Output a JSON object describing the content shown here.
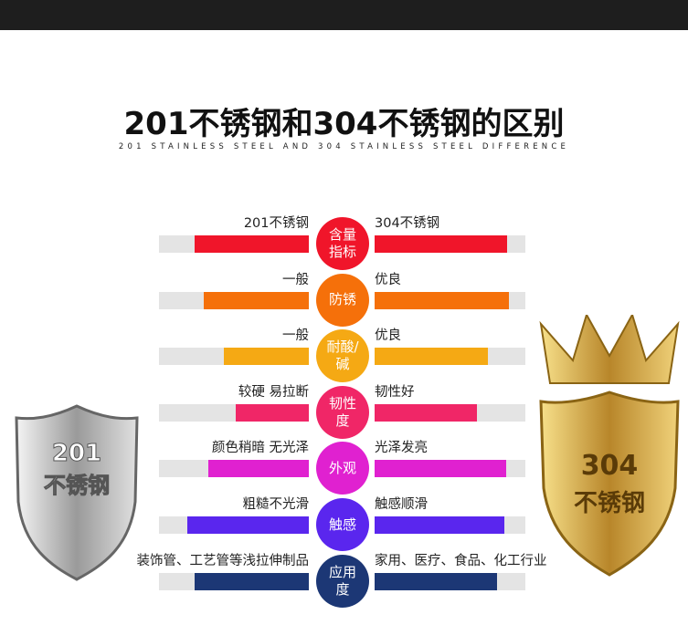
{
  "chart_data": {
    "type": "butterfly",
    "title": "201不锈钢和304不锈钢的区别",
    "subtitle": "201 STAINLESS STEEL AND 304 STAINLESS STEEL DIFFERENCE",
    "categories": [
      "含量指标",
      "防锈",
      "耐酸/碱",
      "韧性度",
      "外观",
      "触感",
      "应用度"
    ],
    "colors": [
      "#f0152a",
      "#f5700a",
      "#f5a914",
      "#f02667",
      "#e021d0",
      "#5a26ee",
      "#1c3775"
    ],
    "xlim": [
      0,
      100
    ],
    "series": [
      {
        "labels": [
          "201不锈钢",
          "一般",
          "一般",
          "较硬 易拉断",
          "颜色稍暗 无光泽",
          "粗糙不光滑",
          "装饰管、工艺管等浅拉伸制品"
        ],
        "values": [
          76,
          70,
          57,
          49,
          67,
          81,
          76
        ]
      },
      {
        "labels": [
          "304不锈钢",
          "优良",
          "优良",
          "韧性好",
          "光泽发亮",
          "触感顺滑",
          "家用、医疗、食品、化工行业"
        ],
        "values": [
          88,
          89,
          75,
          68,
          87,
          86,
          81
        ]
      }
    ],
    "badges": [
      {
        "number": "201",
        "text": "不锈钢"
      },
      {
        "number": "304",
        "text": "不锈钢"
      }
    ]
  }
}
